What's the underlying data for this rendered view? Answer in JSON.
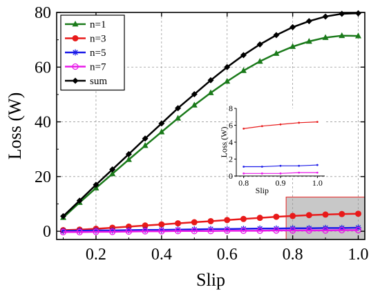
{
  "chart_data": {
    "type": "line",
    "xlabel": "Slip",
    "ylabel": "Loss (W)",
    "xlim": [
      0.08,
      1.02
    ],
    "ylim": [
      -3,
      80
    ],
    "xticks": [
      "0.2",
      "0.4",
      "0.6",
      "0.8",
      "1.0"
    ],
    "yticks": [
      "0",
      "20",
      "40",
      "60",
      "80"
    ],
    "grid": true,
    "legend_position": "top-left",
    "x": [
      0.1,
      0.15,
      0.2,
      0.25,
      0.3,
      0.35,
      0.4,
      0.45,
      0.5,
      0.55,
      0.6,
      0.65,
      0.7,
      0.75,
      0.8,
      0.85,
      0.9,
      0.95,
      1.0
    ],
    "series": [
      {
        "name": "n=1",
        "color": "#1a7a1a",
        "marker": "triangle",
        "values": [
          5.0,
          10.5,
          15.8,
          21.0,
          26.2,
          31.3,
          36.3,
          41.3,
          46.1,
          50.6,
          54.8,
          58.7,
          62.1,
          65.0,
          67.5,
          69.4,
          70.8,
          71.5,
          71.4
        ]
      },
      {
        "name": "n=3",
        "color": "#e81a1a",
        "marker": "circle",
        "values": [
          0.4,
          0.6,
          0.9,
          1.3,
          1.7,
          2.1,
          2.5,
          2.9,
          3.3,
          3.7,
          4.1,
          4.5,
          4.9,
          5.3,
          5.6,
          5.9,
          6.1,
          6.3,
          6.4
        ]
      },
      {
        "name": "n=5",
        "color": "#1a1ae8",
        "marker": "asterisk",
        "values": [
          0.1,
          0.2,
          0.3,
          0.3,
          0.4,
          0.5,
          0.5,
          0.6,
          0.7,
          0.8,
          0.8,
          0.9,
          1.0,
          1.0,
          1.1,
          1.1,
          1.2,
          1.2,
          1.3
        ]
      },
      {
        "name": "n=7",
        "color": "#e81ae8",
        "marker": "open-circle",
        "values": [
          -0.3,
          -0.3,
          -0.2,
          -0.2,
          -0.1,
          0.0,
          0.0,
          0.1,
          0.1,
          0.1,
          0.2,
          0.2,
          0.2,
          0.3,
          0.3,
          0.3,
          0.3,
          0.4,
          0.4
        ]
      },
      {
        "name": "sum",
        "color": "#000000",
        "marker": "diamond",
        "values": [
          5.5,
          11.2,
          17.0,
          22.6,
          28.2,
          33.9,
          39.4,
          45.0,
          50.1,
          55.2,
          60.0,
          64.4,
          68.3,
          71.7,
          74.6,
          76.8,
          78.5,
          79.5,
          79.7
        ]
      }
    ],
    "highlight_region": {
      "x": [
        0.78,
        1.02
      ],
      "y": [
        -3,
        12.5
      ],
      "fill": "#c8c8c8",
      "stroke": "#e82020"
    },
    "inset": {
      "xlabel": "Slip",
      "ylabel": "Loss (W)",
      "xlim": [
        0.78,
        1.02
      ],
      "ylim": [
        0,
        8
      ],
      "xticks": [
        "0.8",
        "0.9",
        "1.0"
      ],
      "yticks": [
        "0",
        "2",
        "4",
        "6",
        "8"
      ],
      "x": [
        0.8,
        0.85,
        0.9,
        0.95,
        1.0
      ],
      "series": [
        {
          "name": "n=3",
          "color": "#e81a1a",
          "values": [
            5.6,
            5.9,
            6.1,
            6.3,
            6.4
          ]
        },
        {
          "name": "n=5",
          "color": "#1a1ae8",
          "values": [
            1.1,
            1.1,
            1.2,
            1.2,
            1.3
          ]
        },
        {
          "name": "n=7",
          "color": "#e81ae8",
          "values": [
            0.3,
            0.3,
            0.3,
            0.4,
            0.4
          ]
        }
      ]
    }
  }
}
